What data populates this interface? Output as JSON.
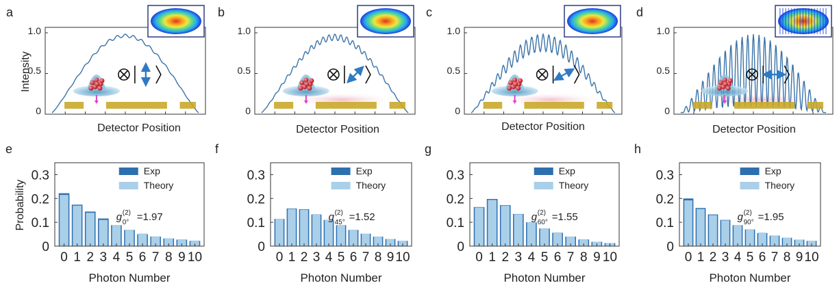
{
  "colors": {
    "curve": "#3a73a8",
    "exp_bar": "#2e6fae",
    "theory_bar": "#a9cfe9",
    "bar_edge": "#2e6fae",
    "gold_bar": "#c9a92a",
    "pink_glow": "#f4c6cf",
    "arrow_blue": "#2f7ac4",
    "pink_arrow": "#e040c8"
  },
  "icons": [
    "atom-ensemble-icon",
    "tensor-product-icon",
    "polarization-ket-icon",
    "gold-detector-bar-icon",
    "beam-profile-heatmap-icon"
  ],
  "top": {
    "ylabel": "Intensity",
    "xlabel": "Detector Position",
    "yticks": [
      "1.0",
      "0.5",
      "0"
    ]
  },
  "bottom": {
    "ylabel": "Probability",
    "xlabel": "Photon Number",
    "yticks": [
      "0.3",
      "0.2",
      "0.1",
      "0"
    ],
    "xticks": [
      "0",
      "1",
      "2",
      "3",
      "4",
      "5",
      "6",
      "7",
      "8",
      "9",
      "10"
    ],
    "legend": [
      "Exp",
      "Theory"
    ]
  },
  "chart_data": [
    {
      "panel": "a",
      "type": "line",
      "xlabel": "Detector Position",
      "ylabel": "Intensity",
      "ylim": [
        0,
        1.0
      ],
      "polarization_angle_deg": 90,
      "fringe_visibility": 0.02
    },
    {
      "panel": "b",
      "type": "line",
      "xlabel": "Detector Position",
      "ylabel": "",
      "ylim": [
        0,
        1.0
      ],
      "polarization_angle_deg": 45,
      "fringe_visibility": 0.08
    },
    {
      "panel": "c",
      "type": "line",
      "xlabel": "Detector Position",
      "ylabel": "",
      "ylim": [
        0,
        1.0
      ],
      "polarization_angle_deg": 30,
      "fringe_visibility": 0.22
    },
    {
      "panel": "d",
      "type": "line",
      "xlabel": "Detector Position",
      "ylabel": "",
      "ylim": [
        0,
        1.0
      ],
      "polarization_angle_deg": 0,
      "fringe_visibility": 0.92
    },
    {
      "panel": "e",
      "type": "bar",
      "categories": [
        0,
        1,
        2,
        3,
        4,
        5,
        6,
        7,
        8,
        9,
        10
      ],
      "series": [
        {
          "name": "Exp",
          "values": [
            0.222,
            0.174,
            0.145,
            0.116,
            0.088,
            0.068,
            0.05,
            0.04,
            0.032,
            0.027,
            0.022
          ]
        },
        {
          "name": "Theory",
          "values": [
            0.215,
            0.17,
            0.14,
            0.11,
            0.088,
            0.069,
            0.053,
            0.041,
            0.033,
            0.026,
            0.021
          ]
        }
      ],
      "g2_label": "g",
      "g2_sub": "0°",
      "g2_value": "=1.97",
      "ylim": [
        0,
        0.35
      ]
    },
    {
      "panel": "f",
      "type": "bar",
      "categories": [
        0,
        1,
        2,
        3,
        4,
        5,
        6,
        7,
        8,
        9,
        10
      ],
      "series": [
        {
          "name": "Exp",
          "values": [
            0.114,
            0.158,
            0.155,
            0.133,
            0.11,
            0.088,
            0.068,
            0.052,
            0.04,
            0.03,
            0.022
          ]
        },
        {
          "name": "Theory",
          "values": [
            0.115,
            0.156,
            0.153,
            0.132,
            0.11,
            0.088,
            0.068,
            0.052,
            0.04,
            0.03,
            0.022
          ]
        }
      ],
      "g2_label": "g",
      "g2_sub": "45°",
      "g2_value": "=1.52",
      "ylim": [
        0,
        0.35
      ]
    },
    {
      "panel": "g",
      "type": "bar",
      "categories": [
        0,
        1,
        2,
        3,
        4,
        5,
        6,
        7,
        8,
        9,
        10
      ],
      "series": [
        {
          "name": "Exp",
          "values": [
            0.164,
            0.198,
            0.172,
            0.135,
            0.1,
            0.074,
            0.056,
            0.04,
            0.028,
            0.018,
            0.013
          ]
        },
        {
          "name": "Theory",
          "values": [
            0.162,
            0.194,
            0.17,
            0.134,
            0.1,
            0.074,
            0.055,
            0.04,
            0.028,
            0.019,
            0.013
          ]
        }
      ],
      "g2_label": "g",
      "g2_sub": "60°",
      "g2_value": "=1.55",
      "ylim": [
        0,
        0.35
      ]
    },
    {
      "panel": "h",
      "type": "bar",
      "categories": [
        0,
        1,
        2,
        3,
        4,
        5,
        6,
        7,
        8,
        9,
        10
      ],
      "series": [
        {
          "name": "Exp",
          "values": [
            0.2,
            0.16,
            0.133,
            0.11,
            0.088,
            0.07,
            0.055,
            0.044,
            0.035,
            0.027,
            0.022
          ]
        },
        {
          "name": "Theory",
          "values": [
            0.192,
            0.156,
            0.13,
            0.108,
            0.088,
            0.071,
            0.057,
            0.045,
            0.035,
            0.027,
            0.022
          ]
        }
      ],
      "g2_label": "g",
      "g2_sub": "90°",
      "g2_value": "=1.95",
      "ylim": [
        0,
        0.35
      ]
    }
  ]
}
